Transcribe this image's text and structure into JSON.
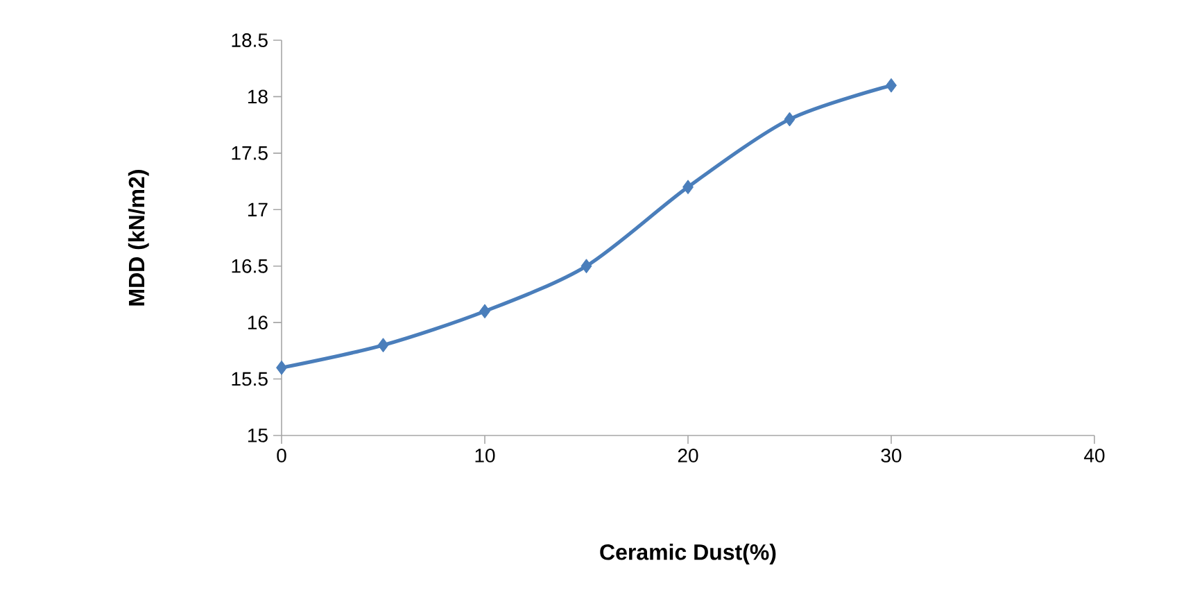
{
  "chart_data": {
    "type": "line",
    "xlabel": "Ceramic Dust(%)",
    "ylabel": "MDD (kN/m2)",
    "x": [
      0,
      5,
      10,
      15,
      20,
      25,
      30
    ],
    "series": [
      {
        "color": "#4a7ebb",
        "values": [
          15.6,
          15.8,
          16.1,
          16.5,
          17.2,
          17.8,
          18.1
        ]
      }
    ],
    "xlim": [
      0,
      40
    ],
    "xticks": [
      0,
      10,
      20,
      30,
      40
    ],
    "ylim": [
      15,
      18.5
    ],
    "yticks": [
      15,
      15.5,
      16,
      16.5,
      17,
      17.5,
      18,
      18.5
    ],
    "marker": "diamond",
    "line_style": "solid",
    "grid": false
  }
}
